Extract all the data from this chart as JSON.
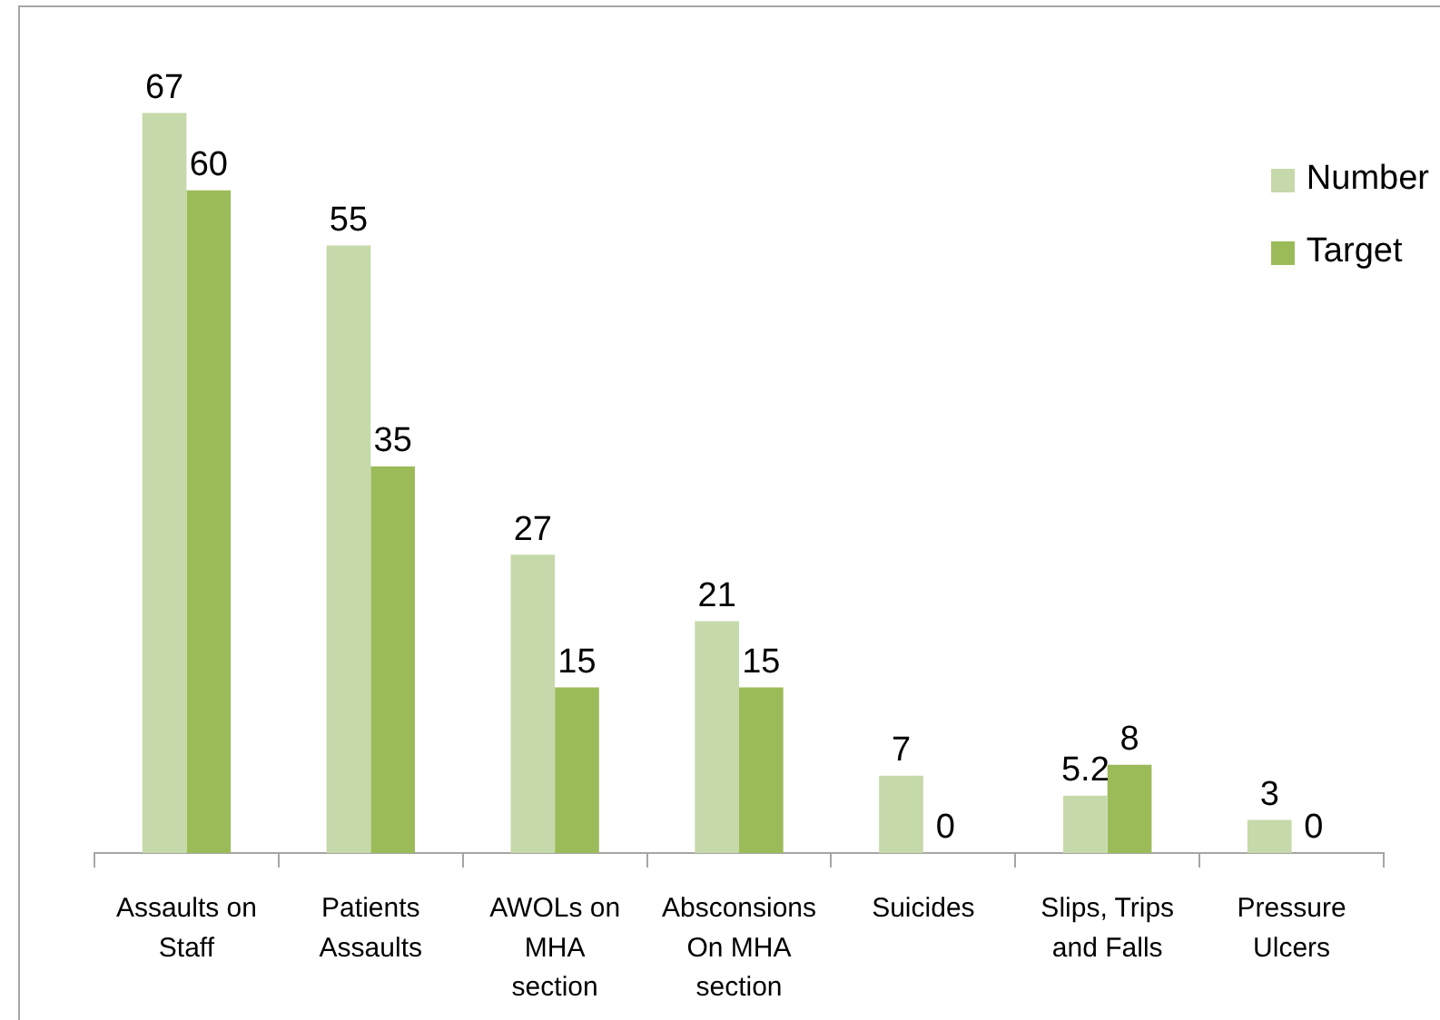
{
  "chart_data": {
    "type": "bar",
    "categories": [
      "Assaults on Staff",
      "Patients Assaults",
      "AWOLs on MHA section",
      "Absconsions On MHA section",
      "Suicides",
      "Slips, Trips and Falls",
      "Pressure Ulcers"
    ],
    "series": [
      {
        "name": "Number",
        "color": "#c6d9ab",
        "values": [
          67,
          55,
          27,
          21,
          7,
          5.2,
          3
        ]
      },
      {
        "name": "Target",
        "color": "#9bbb59",
        "values": [
          60,
          35,
          15,
          15,
          0,
          8,
          0
        ]
      }
    ],
    "data_labels": true,
    "legend": "top right",
    "tick_labels": "x"
  }
}
